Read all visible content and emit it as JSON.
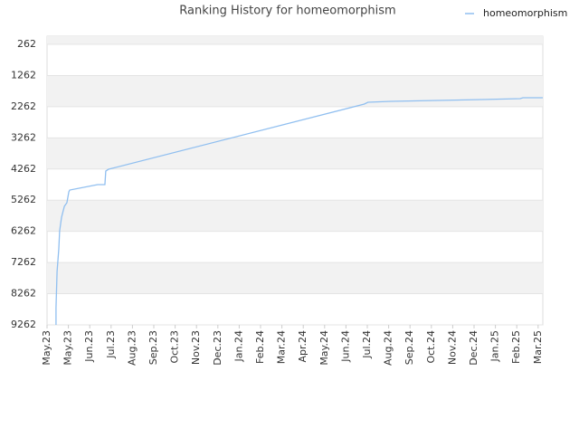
{
  "chart_data": {
    "type": "line",
    "title": "Ranking History for homeomorphism",
    "x": [
      0.42,
      0.42,
      0.47,
      0.55,
      0.59,
      0.68,
      0.81,
      0.93,
      1.02,
      1.06,
      2.37,
      2.71,
      2.75,
      2.88,
      14.86,
      15.03,
      16.1,
      18.26,
      20.38,
      22.16,
      22.29,
      23.22
    ],
    "series": [
      {
        "name": "homeomorphism",
        "color": "#90bff0",
        "values": [
          9262,
          8711,
          7550,
          6824,
          6243,
          5808,
          5460,
          5343,
          4995,
          4937,
          4762,
          4762,
          4327,
          4269,
          2178,
          2120,
          2091,
          2062,
          2033,
          2004,
          1975,
          1975
        ]
      }
    ],
    "xlim": [
      0,
      23.22
    ],
    "xticks": [
      {
        "value": 0,
        "label": "May.23"
      },
      {
        "value": 1,
        "label": "May.23"
      },
      {
        "value": 2,
        "label": "Jun.23"
      },
      {
        "value": 3,
        "label": "Jul.23"
      },
      {
        "value": 4,
        "label": "Aug.23"
      },
      {
        "value": 5,
        "label": "Sep.23"
      },
      {
        "value": 6,
        "label": "Oct.23"
      },
      {
        "value": 7,
        "label": "Nov.23"
      },
      {
        "value": 8,
        "label": "Dec.23"
      },
      {
        "value": 9,
        "label": "Jan.24"
      },
      {
        "value": 10,
        "label": "Feb.24"
      },
      {
        "value": 11,
        "label": "Mar.24"
      },
      {
        "value": 12,
        "label": "Apr.24"
      },
      {
        "value": 13,
        "label": "May.24"
      },
      {
        "value": 14,
        "label": "Jun.24"
      },
      {
        "value": 15,
        "label": "Jul.24"
      },
      {
        "value": 16,
        "label": "Aug.24"
      },
      {
        "value": 17,
        "label": "Sep.24"
      },
      {
        "value": 18,
        "label": "Oct.24"
      },
      {
        "value": 19,
        "label": "Nov.24"
      },
      {
        "value": 20,
        "label": "Dec.24"
      },
      {
        "value": 21,
        "label": "Jan.25"
      },
      {
        "value": 22,
        "label": "Feb.25"
      },
      {
        "value": 23,
        "label": "Mar.25"
      }
    ],
    "ylim": [
      9262,
      0
    ],
    "yticks": [
      262,
      1262,
      2262,
      3262,
      4262,
      5262,
      6262,
      7262,
      8262,
      9262
    ],
    "grid": true,
    "legend": "top-right"
  }
}
